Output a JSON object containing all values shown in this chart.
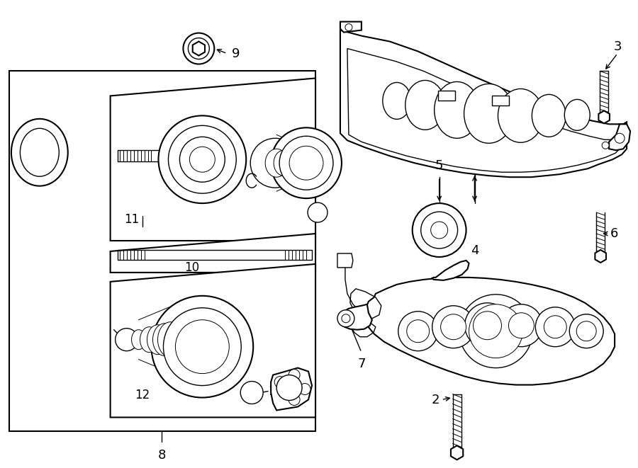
{
  "bg_color": "#ffffff",
  "line_color": "#000000",
  "label_color": "#000000",
  "fig_width": 9.0,
  "fig_height": 6.61,
  "dpi": 100
}
